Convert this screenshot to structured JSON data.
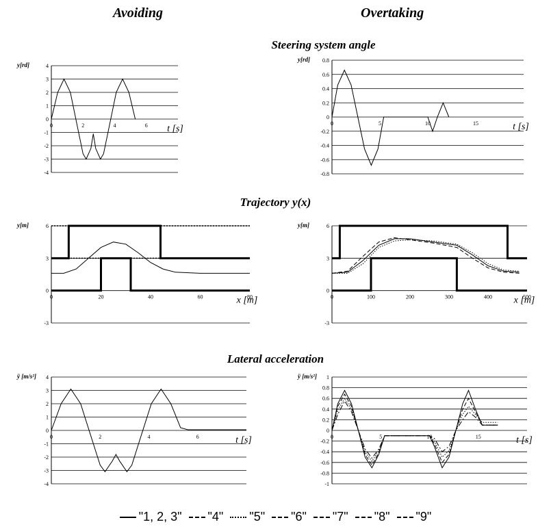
{
  "headers": {
    "left": "Avoiding",
    "right": "Overtaking"
  },
  "sections": {
    "steering": "Steering system angle",
    "trajectory": "Trajectory y(x)",
    "lateral": "Lateral acceleration"
  },
  "legend": [
    {
      "label": "\"1, 2, 3\"",
      "style": "solid"
    },
    {
      "label": "\"4\"",
      "style": "dashed"
    },
    {
      "label": "\"5\"",
      "style": "dotted"
    },
    {
      "label": "\"6\"",
      "style": "dashed"
    },
    {
      "label": "\"7\"",
      "style": "dashed"
    },
    {
      "label": "\"8\"",
      "style": "dashed"
    },
    {
      "label": "\"9\"",
      "style": "dashed"
    }
  ],
  "chart_data": [
    {
      "id": "steer_avoid",
      "type": "line",
      "ylabel": "y[rd]",
      "xlabel": "t [s]",
      "xlim": [
        0,
        8
      ],
      "ylim": [
        -4,
        4
      ],
      "yticks": [
        -4,
        -3,
        -2,
        -1,
        0,
        1,
        2,
        3,
        4
      ],
      "xticks": [
        0,
        2,
        4,
        6
      ],
      "xtick_labels": [
        "0",
        "2",
        "4",
        "6"
      ],
      "grid": "horizontal",
      "series": [
        {
          "values": [
            [
              0,
              0
            ],
            [
              0.4,
              2.0
            ],
            [
              0.8,
              3.0
            ],
            [
              1.2,
              2.0
            ],
            [
              1.6,
              -0.3
            ],
            [
              2.0,
              -2.6
            ],
            [
              2.2,
              -3.0
            ],
            [
              2.5,
              -2.2
            ],
            [
              2.65,
              -1.1
            ],
            [
              2.8,
              -2.2
            ],
            [
              3.1,
              -3.0
            ],
            [
              3.3,
              -2.6
            ],
            [
              3.7,
              -0.3
            ],
            [
              4.1,
              2.0
            ],
            [
              4.5,
              3.0
            ],
            [
              4.9,
              2.0
            ],
            [
              5.3,
              0
            ]
          ]
        }
      ]
    },
    {
      "id": "steer_over",
      "type": "line",
      "ylabel": "y[rd]",
      "xlabel": "t [s]",
      "xlim": [
        0,
        20
      ],
      "ylim": [
        -0.8,
        0.8
      ],
      "yticks": [
        -0.8,
        -0.6,
        -0.4,
        -0.2,
        0,
        0.2,
        0.4,
        0.6,
        0.8
      ],
      "xticks": [
        0,
        5,
        10,
        15
      ],
      "xtick_labels": [
        "0",
        "5",
        "10",
        "15"
      ],
      "grid": "horizontal",
      "series": [
        {
          "values": [
            [
              0,
              0
            ],
            [
              0.6,
              0.45
            ],
            [
              1.3,
              0.66
            ],
            [
              2.0,
              0.45
            ],
            [
              2.7,
              0
            ],
            [
              3.4,
              -0.45
            ],
            [
              4.1,
              -0.68
            ],
            [
              4.8,
              -0.45
            ],
            [
              5.4,
              0
            ],
            [
              10.0,
              0
            ],
            [
              10.5,
              -0.2
            ],
            [
              11.0,
              0
            ],
            [
              11.6,
              0.2
            ],
            [
              12.2,
              0
            ]
          ]
        }
      ]
    },
    {
      "id": "traj_avoid",
      "type": "line",
      "ylabel": "y[m]",
      "xlabel": "x [m]",
      "xlim": [
        0,
        80
      ],
      "ylim": [
        -3,
        6
      ],
      "yticks": [
        -3,
        0,
        3,
        6
      ],
      "xticks": [
        0,
        20,
        40,
        60,
        80
      ],
      "xtick_labels": [
        "0",
        "20",
        "40",
        "60",
        "80"
      ],
      "grid": "horizontal",
      "dotted_lines": [
        6,
        3
      ],
      "walls": [
        [
          [
            0,
            3
          ],
          [
            7,
            3
          ],
          [
            7,
            6
          ],
          [
            44,
            6
          ],
          [
            44,
            3
          ],
          [
            80,
            3
          ]
        ],
        [
          [
            0,
            0
          ],
          [
            20,
            0
          ],
          [
            20,
            3
          ],
          [
            32,
            3
          ],
          [
            32,
            0
          ],
          [
            80,
            0
          ]
        ]
      ],
      "series": [
        {
          "values": [
            [
              0,
              1.6
            ],
            [
              5,
              1.6
            ],
            [
              10,
              2.0
            ],
            [
              15,
              3.0
            ],
            [
              20,
              4.0
            ],
            [
              25,
              4.5
            ],
            [
              30,
              4.3
            ],
            [
              35,
              3.5
            ],
            [
              40,
              2.6
            ],
            [
              45,
              2.0
            ],
            [
              50,
              1.7
            ],
            [
              60,
              1.6
            ],
            [
              70,
              1.6
            ],
            [
              80,
              1.6
            ]
          ]
        }
      ]
    },
    {
      "id": "traj_over",
      "type": "line",
      "ylabel": "y[m]",
      "xlabel": "x [m]",
      "xlim": [
        0,
        500
      ],
      "ylim": [
        -3,
        6
      ],
      "yticks": [
        -3,
        0,
        3,
        6
      ],
      "xticks": [
        0,
        100,
        200,
        300,
        400,
        500
      ],
      "xtick_labels": [
        "0",
        "100",
        "200",
        "300",
        "400",
        "500"
      ],
      "grid": "horizontal",
      "walls": [
        [
          [
            0,
            3
          ],
          [
            20,
            3
          ],
          [
            20,
            6
          ],
          [
            450,
            6
          ],
          [
            450,
            3
          ],
          [
            500,
            3
          ]
        ],
        [
          [
            0,
            0
          ],
          [
            100,
            0
          ],
          [
            100,
            3
          ],
          [
            320,
            3
          ],
          [
            320,
            0
          ],
          [
            500,
            0
          ]
        ]
      ],
      "series": [
        {
          "values": [
            [
              0,
              1.6
            ],
            [
              40,
              1.7
            ],
            [
              80,
              2.8
            ],
            [
              120,
              4.2
            ],
            [
              160,
              4.8
            ],
            [
              200,
              4.8
            ],
            [
              260,
              4.5
            ],
            [
              320,
              4.2
            ],
            [
              360,
              3.3
            ],
            [
              400,
              2.3
            ],
            [
              440,
              1.8
            ],
            [
              480,
              1.7
            ]
          ]
        },
        {
          "values": [
            [
              0,
              1.6
            ],
            [
              40,
              1.8
            ],
            [
              80,
              3.2
            ],
            [
              120,
              4.5
            ],
            [
              160,
              4.9
            ],
            [
              200,
              4.7
            ],
            [
              260,
              4.4
            ],
            [
              320,
              4.0
            ],
            [
              360,
              3.0
            ],
            [
              400,
              2.1
            ],
            [
              440,
              1.7
            ],
            [
              480,
              1.6
            ]
          ]
        },
        {
          "values": [
            [
              0,
              1.6
            ],
            [
              40,
              1.6
            ],
            [
              80,
              2.5
            ],
            [
              120,
              4.0
            ],
            [
              160,
              4.6
            ],
            [
              200,
              4.7
            ],
            [
              260,
              4.6
            ],
            [
              320,
              4.3
            ],
            [
              360,
              3.5
            ],
            [
              400,
              2.5
            ],
            [
              440,
              1.9
            ],
            [
              480,
              1.8
            ]
          ]
        }
      ]
    },
    {
      "id": "lat_avoid",
      "type": "line",
      "ylabel": "ÿ [m/s²]",
      "xlabel": "t [s]",
      "xlim": [
        0,
        8
      ],
      "ylim": [
        -4,
        4
      ],
      "yticks": [
        -4,
        -3,
        -2,
        -1,
        0,
        1,
        2,
        3,
        4
      ],
      "xticks": [
        0,
        2,
        4,
        6
      ],
      "xtick_labels": [
        "0",
        "2",
        "4",
        "6"
      ],
      "grid": "horizontal",
      "series": [
        {
          "values": [
            [
              0,
              0
            ],
            [
              0.4,
              2.0
            ],
            [
              0.8,
              3.1
            ],
            [
              1.2,
              2.0
            ],
            [
              1.6,
              -0.3
            ],
            [
              2.0,
              -2.6
            ],
            [
              2.2,
              -3.1
            ],
            [
              2.5,
              -2.3
            ],
            [
              2.65,
              -1.8
            ],
            [
              2.8,
              -2.3
            ],
            [
              3.1,
              -3.1
            ],
            [
              3.3,
              -2.6
            ],
            [
              3.7,
              -0.3
            ],
            [
              4.1,
              2.0
            ],
            [
              4.5,
              3.1
            ],
            [
              4.9,
              2.0
            ],
            [
              5.3,
              0.2
            ],
            [
              5.6,
              0.05
            ],
            [
              6.0,
              0.05
            ],
            [
              8.0,
              0.05
            ]
          ]
        }
      ]
    },
    {
      "id": "lat_over",
      "type": "line",
      "ylabel": "ÿ [m/s²]",
      "xlabel": "t [s]",
      "xlim": [
        0,
        20
      ],
      "ylim": [
        -1,
        1
      ],
      "yticks": [
        -1,
        -0.8,
        -0.6,
        -0.4,
        -0.2,
        0,
        0.2,
        0.4,
        0.6,
        0.8,
        1
      ],
      "xticks": [
        0,
        5,
        10,
        15
      ],
      "xtick_labels": [
        "0",
        "5",
        "10",
        "15"
      ],
      "grid": "horizontal",
      "series": [
        {
          "values": [
            [
              0,
              0
            ],
            [
              0.6,
              0.5
            ],
            [
              1.3,
              0.75
            ],
            [
              2.0,
              0.5
            ],
            [
              2.7,
              0
            ],
            [
              3.4,
              -0.5
            ],
            [
              4.1,
              -0.7
            ],
            [
              4.8,
              -0.45
            ],
            [
              5.4,
              -0.1
            ],
            [
              6,
              -0.1
            ],
            [
              10,
              -0.1
            ],
            [
              10.5,
              -0.3
            ],
            [
              11.3,
              -0.7
            ],
            [
              12,
              -0.5
            ],
            [
              12.7,
              0
            ],
            [
              13.4,
              0.5
            ],
            [
              14,
              0.75
            ],
            [
              14.7,
              0.4
            ],
            [
              15.4,
              0.1
            ],
            [
              17,
              0.1
            ]
          ]
        },
        {
          "values": [
            [
              0,
              0
            ],
            [
              0.6,
              0.45
            ],
            [
              1.3,
              0.68
            ],
            [
              2.0,
              0.45
            ],
            [
              2.7,
              0
            ],
            [
              3.4,
              -0.45
            ],
            [
              4.1,
              -0.65
            ],
            [
              4.8,
              -0.42
            ],
            [
              5.4,
              -0.1
            ],
            [
              6,
              -0.1
            ],
            [
              10,
              -0.1
            ],
            [
              10.5,
              -0.25
            ],
            [
              11.3,
              -0.6
            ],
            [
              12,
              -0.45
            ],
            [
              12.7,
              0
            ],
            [
              13.4,
              0.4
            ],
            [
              14,
              0.6
            ],
            [
              14.7,
              0.35
            ],
            [
              15.4,
              0.1
            ],
            [
              17,
              0.1
            ]
          ]
        },
        {
          "values": [
            [
              0,
              0
            ],
            [
              0.6,
              0.38
            ],
            [
              1.3,
              0.6
            ],
            [
              2.0,
              0.4
            ],
            [
              2.7,
              0
            ],
            [
              3.4,
              -0.4
            ],
            [
              4.1,
              -0.58
            ],
            [
              4.8,
              -0.38
            ],
            [
              5.4,
              -0.1
            ],
            [
              6,
              -0.1
            ],
            [
              10,
              -0.1
            ],
            [
              10.5,
              -0.2
            ],
            [
              11.3,
              -0.5
            ],
            [
              12,
              -0.38
            ],
            [
              12.7,
              0
            ],
            [
              13.4,
              0.3
            ],
            [
              14,
              0.45
            ],
            [
              14.7,
              0.3
            ],
            [
              15.4,
              0.15
            ],
            [
              17,
              0.15
            ]
          ]
        },
        {
          "values": [
            [
              0,
              0
            ],
            [
              0.6,
              0.3
            ],
            [
              1.3,
              0.55
            ],
            [
              2.0,
              0.35
            ],
            [
              2.7,
              0
            ],
            [
              3.4,
              -0.35
            ],
            [
              4.1,
              -0.52
            ],
            [
              4.8,
              -0.35
            ],
            [
              5.4,
              -0.1
            ],
            [
              6,
              -0.1
            ],
            [
              10,
              -0.1
            ],
            [
              10.5,
              -0.15
            ],
            [
              11.3,
              -0.4
            ],
            [
              12,
              -0.3
            ],
            [
              12.7,
              0
            ],
            [
              13.4,
              0.2
            ],
            [
              14,
              0.35
            ],
            [
              14.7,
              0.25
            ],
            [
              15.4,
              0.1
            ],
            [
              17,
              0.1
            ]
          ]
        }
      ]
    }
  ]
}
